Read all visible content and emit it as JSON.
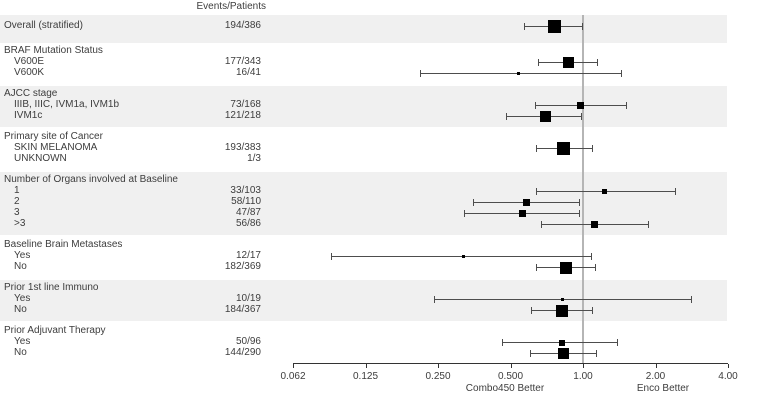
{
  "chart_data": {
    "type": "scatter",
    "variant": "forest-plot-hazard-ratio",
    "title": "",
    "column_header": "Events/Patients",
    "x_axis": {
      "scale": "log2",
      "tick_values": [
        0.0625,
        0.125,
        0.25,
        0.5,
        1,
        2,
        4
      ],
      "tick_labels": [
        "0.062",
        "0.125",
        "0.250",
        "0.500",
        "1.00",
        "2.00",
        "4.00"
      ],
      "range": [
        0.0625,
        4
      ],
      "reference_line": 1.0,
      "left_annotation": "Combo450 Better",
      "right_annotation": "Enco Better"
    },
    "groups": [
      {
        "header": null,
        "shaded": true,
        "rows": [
          {
            "label": "Overall (stratified)",
            "indent": 0,
            "events": "194/386",
            "est": 0.76,
            "lo": 0.57,
            "hi": 1.0,
            "size": 13
          }
        ]
      },
      {
        "header": "BRAF Mutation Status",
        "shaded": false,
        "rows": [
          {
            "label": "V600E",
            "indent": 1,
            "events": "177/343",
            "est": 0.87,
            "lo": 0.65,
            "hi": 1.15,
            "size": 11
          },
          {
            "label": "V600K",
            "indent": 1,
            "events": "16/41",
            "est": 0.54,
            "lo": 0.21,
            "hi": 1.45,
            "size": 3
          }
        ]
      },
      {
        "header": "AJCC stage",
        "shaded": true,
        "rows": [
          {
            "label": "IIIB, IIIC, IVM1a, IVM1b",
            "indent": 1,
            "events": "73/168",
            "est": 0.98,
            "lo": 0.63,
            "hi": 1.52,
            "size": 7
          },
          {
            "label": "IVM1c",
            "indent": 1,
            "events": "121/218",
            "est": 0.7,
            "lo": 0.48,
            "hi": 0.99,
            "size": 11
          }
        ]
      },
      {
        "header": "Primary site of Cancer",
        "shaded": false,
        "rows": [
          {
            "label": "SKIN MELANOMA",
            "indent": 1,
            "events": "193/383",
            "est": 0.83,
            "lo": 0.64,
            "hi": 1.1,
            "size": 13
          },
          {
            "label": "UNKNOWN",
            "indent": 1,
            "events": "1/3",
            "est": null,
            "lo": null,
            "hi": null,
            "size": 0
          }
        ]
      },
      {
        "header": "Number of Organs involved at Baseline",
        "shaded": true,
        "rows": [
          {
            "label": "1",
            "indent": 1,
            "events": "33/103",
            "est": 1.23,
            "lo": 0.64,
            "hi": 2.43,
            "size": 5
          },
          {
            "label": "2",
            "indent": 1,
            "events": "58/110",
            "est": 0.58,
            "lo": 0.35,
            "hi": 0.97,
            "size": 7
          },
          {
            "label": "3",
            "indent": 1,
            "events": "47/87",
            "est": 0.56,
            "lo": 0.32,
            "hi": 0.97,
            "size": 7
          },
          {
            "label": ">3",
            "indent": 1,
            "events": "56/86",
            "est": 1.12,
            "lo": 0.67,
            "hi": 1.88,
            "size": 7
          }
        ]
      },
      {
        "header": "Baseline Brain Metastases",
        "shaded": false,
        "rows": [
          {
            "label": "Yes",
            "indent": 1,
            "events": "12/17",
            "est": 0.32,
            "lo": 0.09,
            "hi": 1.09,
            "size": 3
          },
          {
            "label": "No",
            "indent": 1,
            "events": "182/369",
            "est": 0.85,
            "lo": 0.64,
            "hi": 1.13,
            "size": 12
          }
        ]
      },
      {
        "header": "Prior 1st line Immuno",
        "shaded": true,
        "rows": [
          {
            "label": "Yes",
            "indent": 1,
            "events": "10/19",
            "est": 0.82,
            "lo": 0.24,
            "hi": 2.83,
            "size": 3
          },
          {
            "label": "No",
            "indent": 1,
            "events": "184/367",
            "est": 0.82,
            "lo": 0.61,
            "hi": 1.1,
            "size": 12
          }
        ]
      },
      {
        "header": "Prior Adjuvant Therapy",
        "shaded": false,
        "rows": [
          {
            "label": "Yes",
            "indent": 1,
            "events": "50/96",
            "est": 0.82,
            "lo": 0.46,
            "hi": 1.4,
            "size": 6
          },
          {
            "label": "No",
            "indent": 1,
            "events": "144/290",
            "est": 0.83,
            "lo": 0.6,
            "hi": 1.14,
            "size": 11
          }
        ]
      }
    ],
    "colors": {
      "band": "#f0f0f0",
      "marker": "#000000",
      "ci": "#4d4d4d",
      "reference_line": "#b5b5b5",
      "axis": "#333333",
      "text": "#3d3d3d"
    },
    "layout_hints": {
      "grid": "off",
      "legend": "none"
    }
  }
}
